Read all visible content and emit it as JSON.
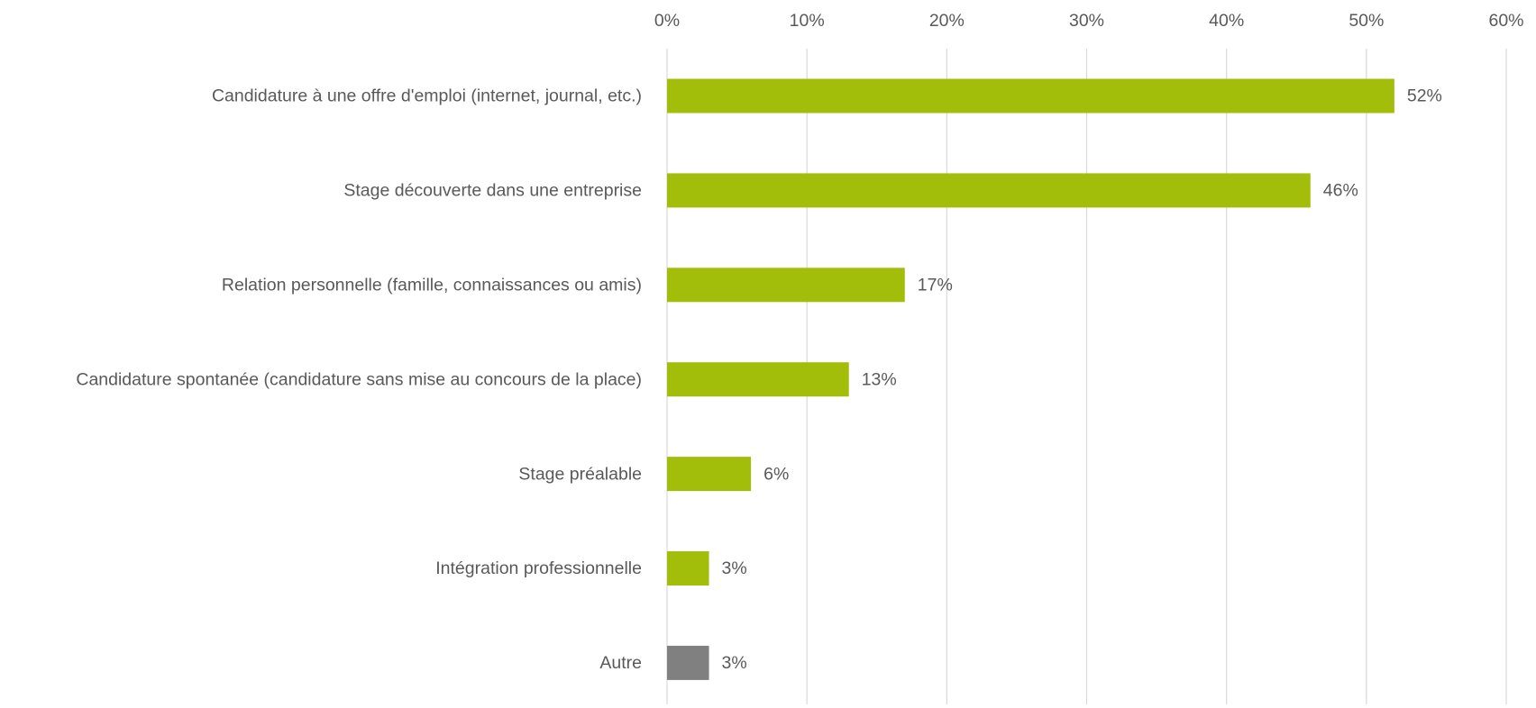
{
  "chart_data": {
    "type": "bar",
    "orientation": "horizontal",
    "categories": [
      "Candidature à une offre d'emploi (internet, journal, etc.)",
      "Stage découverte dans une entreprise",
      "Relation personnelle (famille, connaissances ou amis)",
      "Candidature spontanée (candidature sans mise au concours de la place)",
      "Stage préalable",
      "Intégration professionnelle",
      "Autre"
    ],
    "values": [
      52,
      46,
      17,
      13,
      6,
      3,
      3
    ],
    "value_labels": [
      "52%",
      "46%",
      "17%",
      "13%",
      "6%",
      "3%",
      "3%"
    ],
    "colors": [
      "#a2bd0a",
      "#a2bd0a",
      "#a2bd0a",
      "#a2bd0a",
      "#a2bd0a",
      "#a2bd0a",
      "#808080"
    ],
    "xlim": [
      0,
      60
    ],
    "xticks": [
      {
        "value": 0,
        "label": "0%"
      },
      {
        "value": 10,
        "label": "10%"
      },
      {
        "value": 20,
        "label": "20%"
      },
      {
        "value": 30,
        "label": "30%"
      },
      {
        "value": 40,
        "label": "40%"
      },
      {
        "value": 50,
        "label": "50%"
      },
      {
        "value": 60,
        "label": "60%"
      }
    ],
    "grid": true
  }
}
